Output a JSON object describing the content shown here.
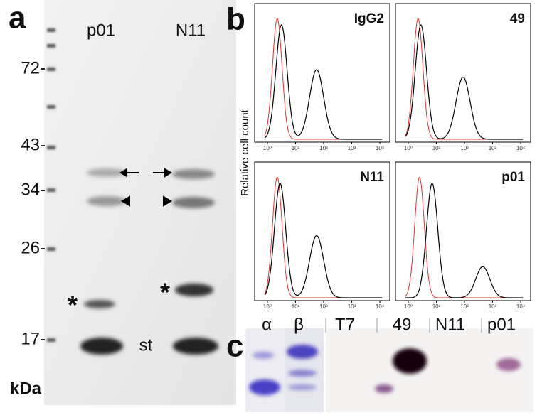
{
  "panels": {
    "a": {
      "label": "a",
      "lanes": [
        "p01",
        "N11"
      ],
      "markers": [
        "72-",
        "43-",
        "34-",
        "26-",
        "17-"
      ],
      "unit": "kDa",
      "asterisks": [
        "*",
        "*"
      ],
      "st": "st"
    },
    "b": {
      "label": "b",
      "y_label": "Relative cell count",
      "plots": [
        {
          "title": "IgG2"
        },
        {
          "title": "49"
        },
        {
          "title": "N11"
        },
        {
          "title": "p01"
        }
      ],
      "x_ticks": [
        "10⁰",
        "10¹",
        "10²",
        "10³",
        "10⁴"
      ]
    },
    "c": {
      "label": "c",
      "lanes": [
        "α",
        "β",
        "T7",
        "49",
        "N11",
        "p01"
      ]
    }
  }
}
